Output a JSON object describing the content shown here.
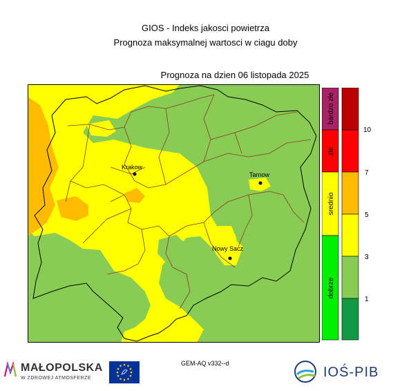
{
  "header": {
    "title_line1": "GIOS - Indeks jakosci powietrza",
    "title_line2": "Prognoza maksymalnej wartosci w ciagu doby",
    "forecast_date": "Prognoza na dzien  06 listopada 2025"
  },
  "cities": [
    {
      "name": "Krakow"
    },
    {
      "name": "Tarnow"
    },
    {
      "name": "Nowy Sacz"
    }
  ],
  "legend": {
    "categories": [
      {
        "label": "dobrze",
        "color": "#00ee00"
      },
      {
        "label": "srednio",
        "color": "#ffff00"
      },
      {
        "label": "złe",
        "color": "#ff0000"
      },
      {
        "label": "bardzo złe",
        "color": "#aa2266"
      }
    ],
    "scale_colors": [
      "#119944",
      "#88cc55",
      "#ffff00",
      "#ffbb00",
      "#ff0000",
      "#bb0000"
    ],
    "tick_labels": [
      "1",
      "3",
      "5",
      "7",
      "10"
    ]
  },
  "footer": {
    "model": "GEM-AQ v332--d",
    "malopolska_name": "MAŁOPOLSKA",
    "malopolska_sub": "W ZDROWEJ ATMOSFERZE",
    "ios_name": "IOŚ-PIB"
  },
  "colors": {
    "good_green": "#88cc55",
    "moderate_yellow": "#ffff00",
    "orange": "#ffbb00",
    "border_brown": "#8b3a1a"
  },
  "icons": [
    "malopolska-logo-icon",
    "eu-flag-icon",
    "ios-logo-icon"
  ]
}
